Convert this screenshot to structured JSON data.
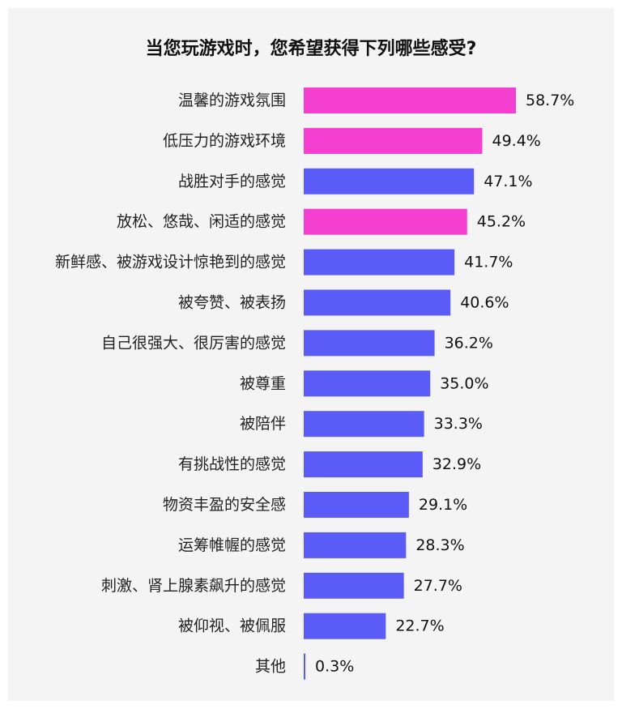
{
  "chart_data": {
    "type": "bar",
    "orientation": "horizontal",
    "title": "当您玩游戏时，您希望获得下列哪些感受?",
    "categories": [
      "温馨的游戏氛围",
      "低压力的游戏环境",
      "战胜对手的感觉",
      "放松、悠哉、闲适的感觉",
      "新鲜感、被游戏设计惊艳到的感觉",
      "被夸赞、被表扬",
      "自己很强大、很厉害的感觉",
      "被尊重",
      "被陪伴",
      "有挑战性的感觉",
      "物资丰盈的安全感",
      "运筹帷幄的感觉",
      "刺激、肾上腺素飙升的感觉",
      "被仰视、被佩服",
      "其他"
    ],
    "values": [
      58.7,
      49.4,
      47.1,
      45.2,
      41.7,
      40.6,
      36.2,
      35.0,
      33.3,
      32.9,
      29.1,
      28.3,
      27.7,
      22.7,
      0.3
    ],
    "value_labels": [
      "58.7%",
      "49.4%",
      "47.1%",
      "45.2%",
      "41.7%",
      "40.6%",
      "36.2%",
      "35.0%",
      "33.3%",
      "32.9%",
      "29.1%",
      "28.3%",
      "27.7%",
      "22.7%",
      "0.3%"
    ],
    "highlight": [
      true,
      true,
      false,
      true,
      false,
      false,
      false,
      false,
      false,
      false,
      false,
      false,
      false,
      false,
      false
    ],
    "colors": {
      "highlight": "#f43fd0",
      "default": "#5b5bf8"
    },
    "xlim": [
      0,
      60
    ],
    "grid": false,
    "legend": "none"
  }
}
